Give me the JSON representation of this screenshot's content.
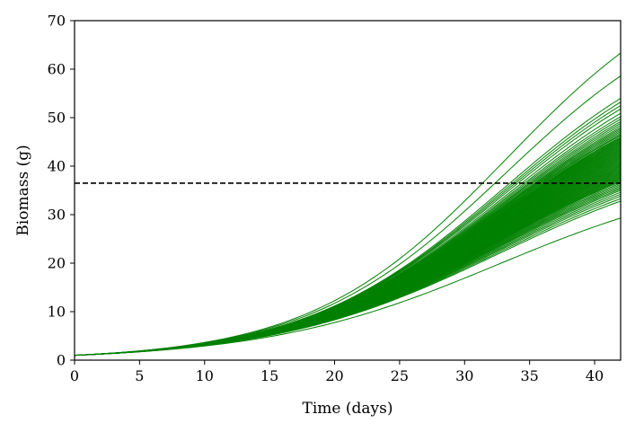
{
  "chart_data": {
    "type": "line",
    "title": "",
    "xlabel": "Time (days)",
    "ylabel": "Biomass (g)",
    "xlim": [
      0,
      42
    ],
    "ylim": [
      0,
      70
    ],
    "xticks": [
      "0",
      "5",
      "10",
      "15",
      "20",
      "25",
      "30",
      "35",
      "40"
    ],
    "yticks": [
      "0",
      "10",
      "20",
      "30",
      "40",
      "50",
      "60",
      "70"
    ],
    "grid": false,
    "legend": "none",
    "series_color": "#008000",
    "series_description": "Ensemble of ~100 logistic biomass growth trajectories; initial biomass ~1 g, final biomass at day 42 ranging ~29 to ~63 g",
    "x": [
      0,
      42
    ],
    "initial_biomass": 1.0,
    "final_biomass_values": [
      63.3,
      58.6,
      54.0,
      53.2,
      52.5,
      51.8,
      50.9,
      50.2,
      49.7,
      49.2,
      48.8,
      48.4,
      48.0,
      47.7,
      47.4,
      47.1,
      46.8,
      46.5,
      46.3,
      46.0,
      45.8,
      45.6,
      45.4,
      45.2,
      45.0,
      44.8,
      44.6,
      44.4,
      44.2,
      44.0,
      43.8,
      43.6,
      43.4,
      43.2,
      43.0,
      42.8,
      42.6,
      42.4,
      42.2,
      42.0,
      41.8,
      41.6,
      41.4,
      41.2,
      41.0,
      40.8,
      40.6,
      40.4,
      40.2,
      40.0,
      39.8,
      39.6,
      39.4,
      39.2,
      39.0,
      38.8,
      38.6,
      38.4,
      38.2,
      38.0,
      37.8,
      37.6,
      37.4,
      37.2,
      37.0,
      36.8,
      36.5,
      36.2,
      35.9,
      35.6,
      35.3,
      35.0,
      34.6,
      34.2,
      33.8,
      33.3,
      32.8,
      29.3
    ],
    "reference_line": {
      "y": 36.5,
      "style": "dashed",
      "color": "#000000"
    }
  }
}
